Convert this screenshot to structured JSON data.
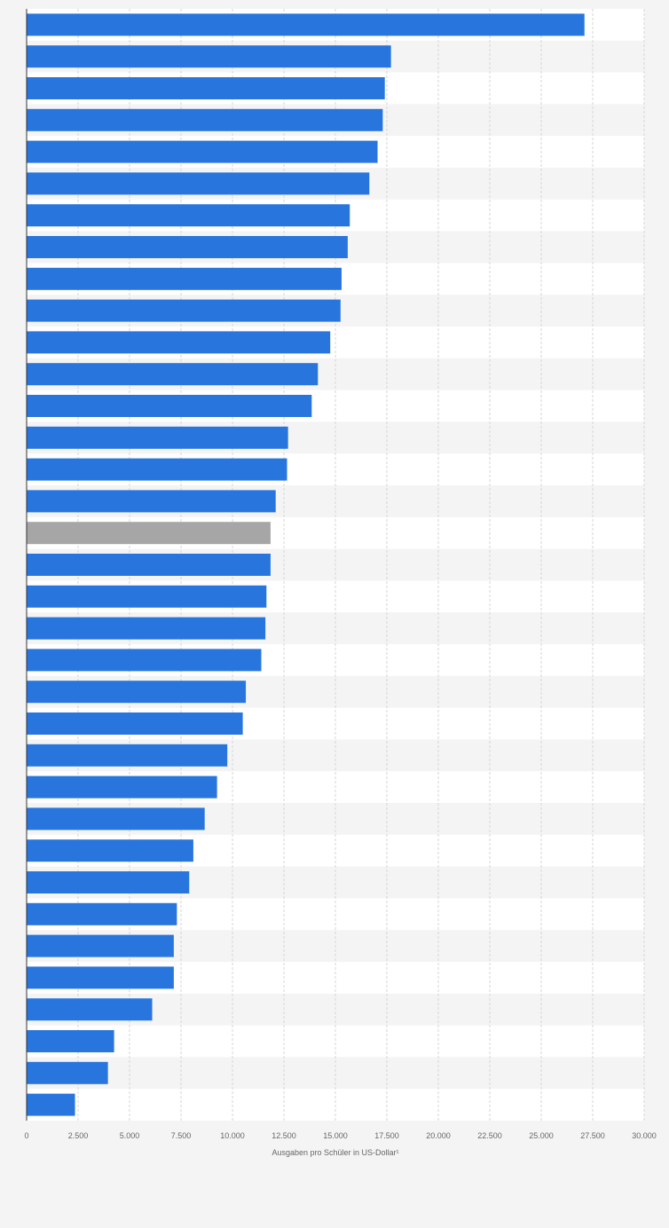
{
  "chart_data": {
    "type": "bar",
    "orientation": "horizontal",
    "xlabel": "Ausgaben pro Schüler in US-Dollar¹",
    "xlim": [
      0,
      30000
    ],
    "xticks": [
      0,
      2500,
      5000,
      7500,
      10000,
      12500,
      15000,
      17500,
      20000,
      22500,
      25000,
      27500,
      30000
    ],
    "xtick_labels": [
      "0",
      "2.500",
      "5.000",
      "7.500",
      "10.000",
      "12.500",
      "15.000",
      "17.500",
      "20.000",
      "22.500",
      "25.000",
      "27.500",
      "30.000"
    ],
    "grid": "vertical-dashed",
    "colors": {
      "bar": "#2876dd",
      "highlight": "#a6a6a6",
      "stripe": "#f4f4f4",
      "plot_bg": "#ffffff"
    },
    "highlight_index": 16,
    "values": [
      27100,
      17700,
      17400,
      17300,
      17050,
      16650,
      15700,
      15600,
      15300,
      15250,
      14750,
      14150,
      13850,
      12700,
      12650,
      12100,
      11850,
      11850,
      11650,
      11600,
      11400,
      10650,
      10500,
      9750,
      9250,
      8650,
      8100,
      7900,
      7300,
      7150,
      7150,
      6100,
      4250,
      3950,
      2350
    ]
  }
}
